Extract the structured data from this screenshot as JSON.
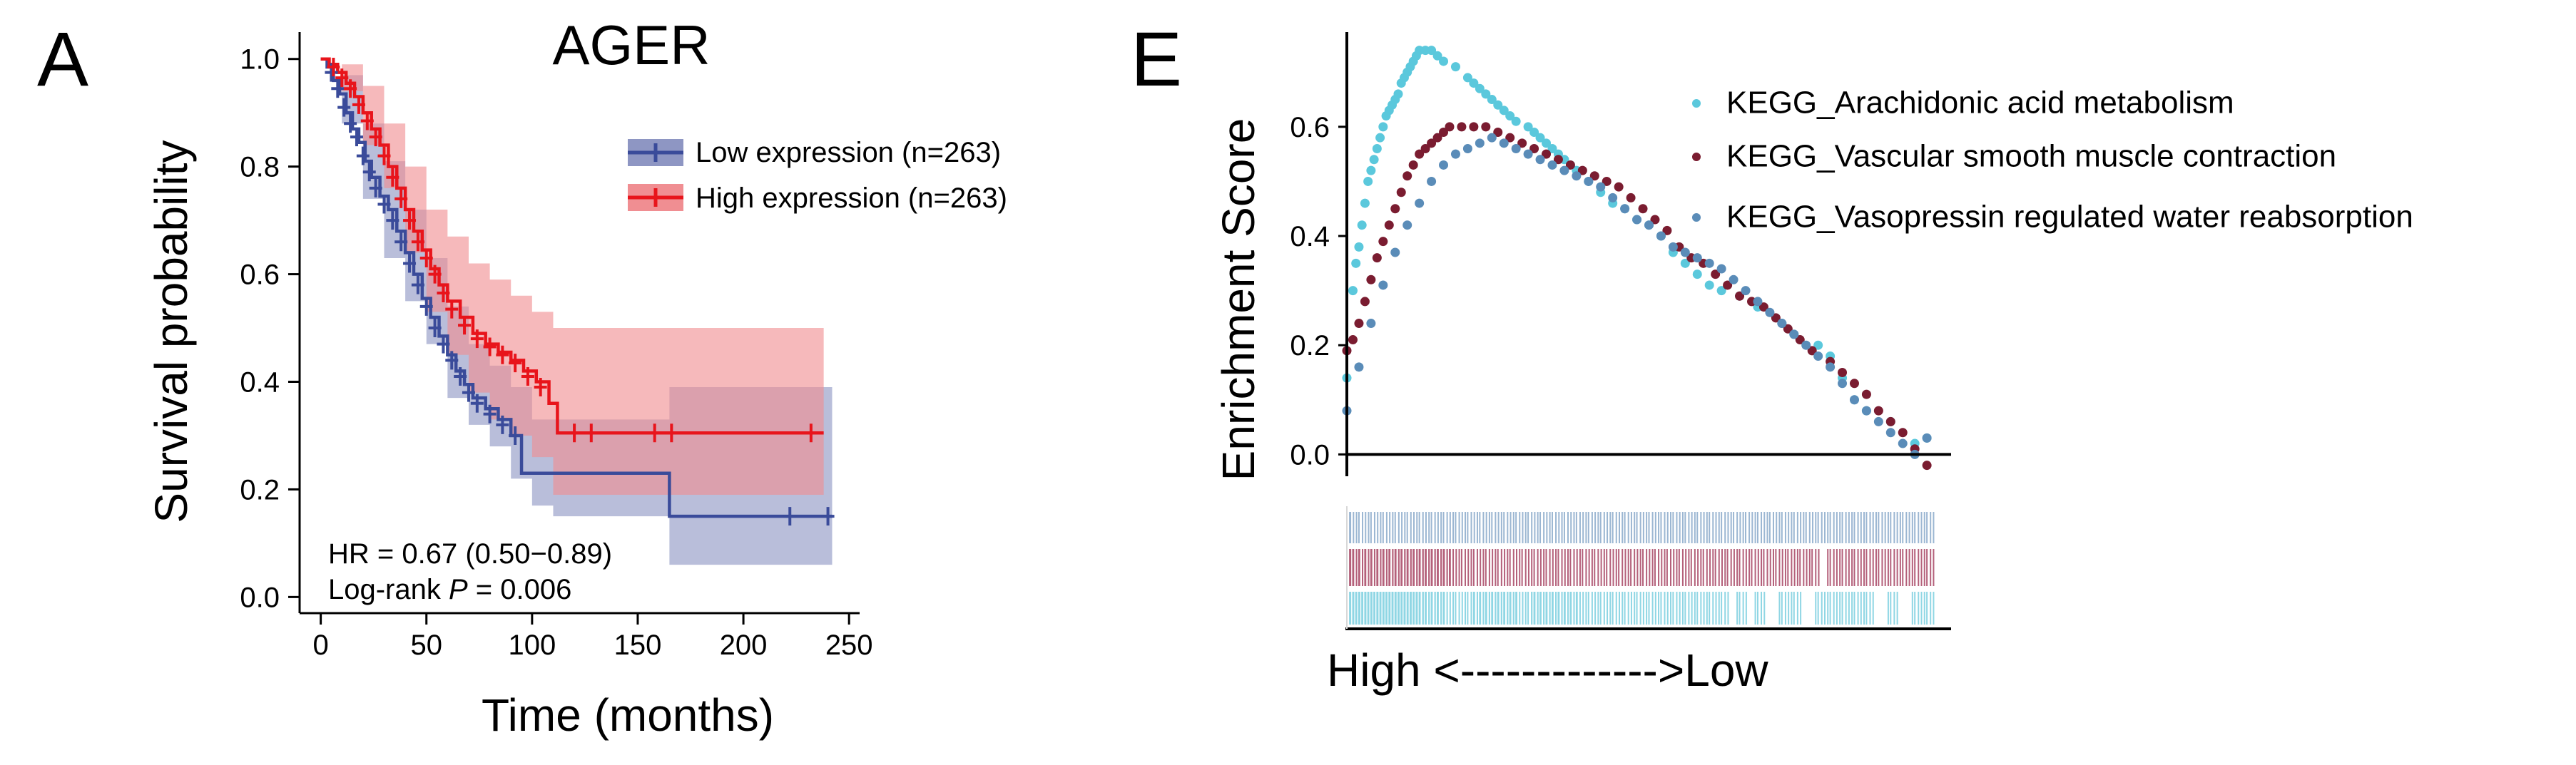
{
  "figure": {
    "panel_a_label": "A",
    "panel_e_label": "E"
  },
  "chart_data": [
    {
      "type": "line",
      "subtype": "kaplan-meier",
      "title": "AGER",
      "xlabel": "Time (months)",
      "ylabel": "Survival probability",
      "xlim": [
        -10,
        255
      ],
      "ylim": [
        -0.03,
        1.05
      ],
      "xticks": [
        0,
        50,
        100,
        150,
        200,
        250
      ],
      "yticks": [
        0.0,
        0.2,
        0.4,
        0.6,
        0.8,
        1.0
      ],
      "legend_position": "top-right",
      "stats": {
        "hr_text": "HR = 0.67 (0.50−0.89)",
        "logrank_prefix": "Log-rank ",
        "logrank_p": "P",
        "logrank_value": " = 0.006"
      },
      "series": [
        {
          "name": "Low expression (n=263)",
          "color": "#3a4b9a",
          "ci_color": "#8e96c3",
          "steps": [
            [
              0,
              1.0
            ],
            [
              3,
              0.985
            ],
            [
              6,
              0.96
            ],
            [
              9,
              0.935
            ],
            [
              12,
              0.9
            ],
            [
              15,
              0.87
            ],
            [
              18,
              0.845
            ],
            [
              21,
              0.81
            ],
            [
              24,
              0.78
            ],
            [
              28,
              0.745
            ],
            [
              32,
              0.72
            ],
            [
              36,
              0.68
            ],
            [
              40,
              0.64
            ],
            [
              44,
              0.6
            ],
            [
              48,
              0.555
            ],
            [
              52,
              0.52
            ],
            [
              56,
              0.485
            ],
            [
              60,
              0.45
            ],
            [
              64,
              0.42
            ],
            [
              68,
              0.395
            ],
            [
              72,
              0.37
            ],
            [
              78,
              0.35
            ],
            [
              84,
              0.33
            ],
            [
              90,
              0.3
            ],
            [
              95,
              0.23
            ],
            [
              105,
              0.23
            ],
            [
              110,
              0.23
            ],
            [
              165,
              0.15
            ],
            [
              242,
              0.15
            ]
          ],
          "ci_upper": [
            [
              0,
              1.0
            ],
            [
              10,
              0.97
            ],
            [
              20,
              0.88
            ],
            [
              30,
              0.81
            ],
            [
              40,
              0.72
            ],
            [
              50,
              0.63
            ],
            [
              60,
              0.54
            ],
            [
              70,
              0.47
            ],
            [
              80,
              0.43
            ],
            [
              90,
              0.39
            ],
            [
              100,
              0.33
            ],
            [
              110,
              0.33
            ],
            [
              165,
              0.39
            ],
            [
              242,
              0.39
            ]
          ],
          "ci_lower": [
            [
              0,
              1.0
            ],
            [
              10,
              0.88
            ],
            [
              20,
              0.74
            ],
            [
              30,
              0.63
            ],
            [
              40,
              0.55
            ],
            [
              50,
              0.47
            ],
            [
              60,
              0.37
            ],
            [
              70,
              0.32
            ],
            [
              80,
              0.28
            ],
            [
              90,
              0.22
            ],
            [
              100,
              0.17
            ],
            [
              110,
              0.15
            ],
            [
              165,
              0.06
            ],
            [
              242,
              0.06
            ]
          ],
          "censors": [
            [
              5,
              0.975
            ],
            [
              8,
              0.945
            ],
            [
              11,
              0.91
            ],
            [
              14,
              0.88
            ],
            [
              17,
              0.855
            ],
            [
              20,
              0.82
            ],
            [
              23,
              0.79
            ],
            [
              26,
              0.76
            ],
            [
              30,
              0.73
            ],
            [
              34,
              0.7
            ],
            [
              38,
              0.66
            ],
            [
              42,
              0.62
            ],
            [
              46,
              0.58
            ],
            [
              50,
              0.54
            ],
            [
              54,
              0.5
            ],
            [
              58,
              0.47
            ],
            [
              62,
              0.44
            ],
            [
              66,
              0.41
            ],
            [
              70,
              0.38
            ],
            [
              74,
              0.36
            ],
            [
              80,
              0.34
            ],
            [
              86,
              0.32
            ],
            [
              92,
              0.3
            ],
            [
              222,
              0.15
            ],
            [
              240,
              0.15
            ]
          ]
        },
        {
          "name": "High expression (n=263)",
          "color": "#e8141b",
          "ci_color": "#f08e92",
          "steps": [
            [
              0,
              1.0
            ],
            [
              4,
              0.99
            ],
            [
              8,
              0.975
            ],
            [
              12,
              0.955
            ],
            [
              16,
              0.93
            ],
            [
              20,
              0.9
            ],
            [
              24,
              0.87
            ],
            [
              28,
              0.84
            ],
            [
              32,
              0.8
            ],
            [
              36,
              0.76
            ],
            [
              40,
              0.72
            ],
            [
              44,
              0.68
            ],
            [
              48,
              0.645
            ],
            [
              52,
              0.61
            ],
            [
              56,
              0.58
            ],
            [
              60,
              0.55
            ],
            [
              66,
              0.52
            ],
            [
              72,
              0.49
            ],
            [
              78,
              0.47
            ],
            [
              84,
              0.455
            ],
            [
              90,
              0.44
            ],
            [
              96,
              0.42
            ],
            [
              102,
              0.4
            ],
            [
              108,
              0.36
            ],
            [
              112,
              0.305
            ],
            [
              238,
              0.305
            ]
          ],
          "ci_upper": [
            [
              0,
              1.0
            ],
            [
              10,
              0.99
            ],
            [
              20,
              0.95
            ],
            [
              30,
              0.88
            ],
            [
              40,
              0.8
            ],
            [
              50,
              0.72
            ],
            [
              60,
              0.67
            ],
            [
              70,
              0.62
            ],
            [
              80,
              0.59
            ],
            [
              90,
              0.56
            ],
            [
              100,
              0.53
            ],
            [
              110,
              0.5
            ],
            [
              238,
              0.5
            ]
          ],
          "ci_lower": [
            [
              0,
              1.0
            ],
            [
              10,
              0.94
            ],
            [
              20,
              0.84
            ],
            [
              30,
              0.76
            ],
            [
              40,
              0.64
            ],
            [
              50,
              0.53
            ],
            [
              60,
              0.45
            ],
            [
              70,
              0.38
            ],
            [
              80,
              0.33
            ],
            [
              90,
              0.3
            ],
            [
              100,
              0.26
            ],
            [
              110,
              0.19
            ],
            [
              238,
              0.19
            ]
          ],
          "censors": [
            [
              6,
              0.985
            ],
            [
              10,
              0.965
            ],
            [
              14,
              0.945
            ],
            [
              18,
              0.915
            ],
            [
              22,
              0.885
            ],
            [
              26,
              0.855
            ],
            [
              30,
              0.82
            ],
            [
              34,
              0.78
            ],
            [
              38,
              0.74
            ],
            [
              42,
              0.7
            ],
            [
              46,
              0.66
            ],
            [
              50,
              0.63
            ],
            [
              54,
              0.6
            ],
            [
              58,
              0.565
            ],
            [
              62,
              0.535
            ],
            [
              68,
              0.505
            ],
            [
              74,
              0.48
            ],
            [
              80,
              0.465
            ],
            [
              86,
              0.45
            ],
            [
              92,
              0.435
            ],
            [
              98,
              0.41
            ],
            [
              104,
              0.39
            ],
            [
              120,
              0.305
            ],
            [
              128,
              0.305
            ],
            [
              158,
              0.305
            ],
            [
              166,
              0.305
            ],
            [
              232,
              0.305
            ]
          ]
        }
      ]
    },
    {
      "type": "scatter",
      "subtype": "gsea-enrichment",
      "xlabel": "High <------------->Low",
      "ylabel": "Enrichment Score",
      "xlim": [
        0,
        1
      ],
      "ylim": [
        -0.04,
        0.78
      ],
      "yticks": [
        0.0,
        0.2,
        0.4,
        0.6
      ],
      "legend_position": "top-right",
      "series": [
        {
          "name": "KEGG_Arachidonic acid metabolism",
          "color": "#5bc8dc",
          "x": [
            0.0,
            0.01,
            0.015,
            0.02,
            0.025,
            0.03,
            0.035,
            0.04,
            0.045,
            0.05,
            0.055,
            0.06,
            0.065,
            0.07,
            0.075,
            0.08,
            0.085,
            0.09,
            0.095,
            0.1,
            0.105,
            0.11,
            0.115,
            0.12,
            0.13,
            0.14,
            0.15,
            0.16,
            0.18,
            0.2,
            0.21,
            0.22,
            0.23,
            0.24,
            0.25,
            0.26,
            0.27,
            0.28,
            0.3,
            0.31,
            0.32,
            0.33,
            0.34,
            0.35,
            0.36,
            0.37,
            0.38,
            0.4,
            0.42,
            0.44,
            0.46,
            0.48,
            0.5,
            0.52,
            0.54,
            0.56,
            0.58,
            0.6,
            0.62,
            0.65,
            0.68,
            0.72,
            0.74,
            0.78,
            0.8,
            0.82,
            0.84,
            0.86,
            0.9,
            0.94,
            0.96
          ],
          "y": [
            0.14,
            0.3,
            0.35,
            0.38,
            0.42,
            0.46,
            0.5,
            0.52,
            0.54,
            0.56,
            0.58,
            0.6,
            0.62,
            0.63,
            0.64,
            0.65,
            0.66,
            0.68,
            0.69,
            0.7,
            0.71,
            0.72,
            0.73,
            0.74,
            0.74,
            0.74,
            0.73,
            0.72,
            0.71,
            0.69,
            0.68,
            0.67,
            0.66,
            0.65,
            0.64,
            0.63,
            0.62,
            0.61,
            0.6,
            0.59,
            0.58,
            0.57,
            0.56,
            0.55,
            0.54,
            0.53,
            0.52,
            0.5,
            0.48,
            0.46,
            0.45,
            0.43,
            0.42,
            0.4,
            0.37,
            0.35,
            0.33,
            0.31,
            0.3,
            0.29,
            0.27,
            0.24,
            0.22,
            0.2,
            0.18,
            0.14,
            0.1,
            0.08,
            0.06,
            0.02,
            0.03
          ]
        },
        {
          "name": "KEGG_Vascular smooth muscle contraction",
          "color": "#7a1c30",
          "x": [
            0.0,
            0.01,
            0.02,
            0.03,
            0.04,
            0.05,
            0.06,
            0.07,
            0.08,
            0.09,
            0.1,
            0.11,
            0.12,
            0.13,
            0.14,
            0.15,
            0.16,
            0.17,
            0.19,
            0.21,
            0.23,
            0.25,
            0.27,
            0.29,
            0.31,
            0.33,
            0.35,
            0.37,
            0.39,
            0.41,
            0.43,
            0.45,
            0.47,
            0.49,
            0.51,
            0.53,
            0.55,
            0.57,
            0.59,
            0.61,
            0.63,
            0.65,
            0.67,
            0.69,
            0.71,
            0.73,
            0.75,
            0.77,
            0.8,
            0.82,
            0.84,
            0.86,
            0.88,
            0.9,
            0.92,
            0.94,
            0.96
          ],
          "y": [
            0.19,
            0.21,
            0.24,
            0.28,
            0.32,
            0.36,
            0.39,
            0.42,
            0.45,
            0.48,
            0.51,
            0.53,
            0.55,
            0.56,
            0.57,
            0.58,
            0.59,
            0.6,
            0.6,
            0.6,
            0.6,
            0.59,
            0.58,
            0.57,
            0.56,
            0.55,
            0.54,
            0.53,
            0.52,
            0.51,
            0.5,
            0.49,
            0.47,
            0.45,
            0.43,
            0.41,
            0.38,
            0.36,
            0.35,
            0.33,
            0.31,
            0.29,
            0.28,
            0.27,
            0.25,
            0.23,
            0.21,
            0.19,
            0.17,
            0.15,
            0.13,
            0.11,
            0.08,
            0.06,
            0.04,
            0.01,
            -0.02
          ]
        },
        {
          "name": "KEGG_Vasopressin regulated water reabsorption",
          "color": "#5a8cb8",
          "x": [
            0.0,
            0.02,
            0.04,
            0.06,
            0.08,
            0.1,
            0.12,
            0.14,
            0.16,
            0.18,
            0.2,
            0.22,
            0.24,
            0.26,
            0.28,
            0.3,
            0.32,
            0.34,
            0.36,
            0.38,
            0.4,
            0.42,
            0.44,
            0.46,
            0.48,
            0.5,
            0.52,
            0.54,
            0.56,
            0.58,
            0.6,
            0.62,
            0.64,
            0.66,
            0.68,
            0.7,
            0.72,
            0.74,
            0.76,
            0.78,
            0.8,
            0.82,
            0.84,
            0.86,
            0.88,
            0.9,
            0.92,
            0.94,
            0.96
          ],
          "y": [
            0.08,
            0.16,
            0.24,
            0.31,
            0.37,
            0.42,
            0.46,
            0.5,
            0.53,
            0.55,
            0.56,
            0.57,
            0.58,
            0.57,
            0.56,
            0.55,
            0.54,
            0.53,
            0.52,
            0.51,
            0.5,
            0.49,
            0.47,
            0.45,
            0.43,
            0.42,
            0.4,
            0.38,
            0.37,
            0.36,
            0.35,
            0.34,
            0.32,
            0.3,
            0.28,
            0.26,
            0.24,
            0.22,
            0.2,
            0.18,
            0.16,
            0.13,
            0.1,
            0.08,
            0.06,
            0.04,
            0.02,
            0.0,
            0.03
          ]
        }
      ]
    }
  ]
}
